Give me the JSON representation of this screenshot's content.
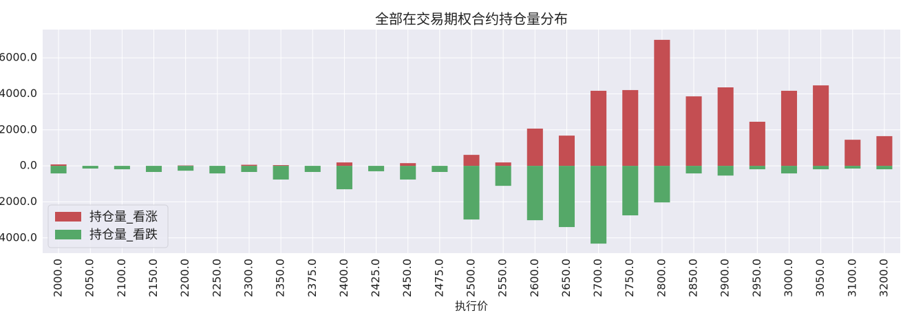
{
  "chart_data": {
    "type": "bar",
    "title": "全部在交易期权合约持仓量分布",
    "x_label": "执行价",
    "categories": [
      "2000.0",
      "2050.0",
      "2100.0",
      "2150.0",
      "2200.0",
      "2250.0",
      "2300.0",
      "2350.0",
      "2375.0",
      "2400.0",
      "2425.0",
      "2450.0",
      "2475.0",
      "2500.0",
      "2550.0",
      "2600.0",
      "2650.0",
      "2700.0",
      "2750.0",
      "2800.0",
      "2850.0",
      "2900.0",
      "2950.0",
      "3000.0",
      "3050.0",
      "3100.0",
      "3200.0"
    ],
    "series": [
      {
        "name": "持仓量_看涨",
        "color": "#c44e52",
        "values": [
          80,
          0,
          0,
          0,
          20,
          0,
          60,
          40,
          0,
          190,
          0,
          150,
          0,
          610,
          190,
          2070,
          1680,
          4170,
          4210,
          7000,
          3860,
          4360,
          2450,
          4170,
          4470,
          1450,
          1650
        ]
      },
      {
        "name": "持仓量_看跌",
        "color": "#55a868",
        "values": [
          -420,
          -150,
          -190,
          -340,
          -270,
          -420,
          -340,
          -760,
          -340,
          -1300,
          -300,
          -760,
          -340,
          -2980,
          -1110,
          -3020,
          -3400,
          -4320,
          -2750,
          -2030,
          -420,
          -540,
          -190,
          -420,
          -190,
          -150,
          -190
        ]
      }
    ],
    "ylim": [
      -4850,
      7570
    ],
    "yticks": [
      {
        "value": -4000,
        "label": "-4000.0"
      },
      {
        "value": -2000,
        "label": "-2000.0"
      },
      {
        "value": 0,
        "label": "0.0"
      },
      {
        "value": 2000,
        "label": "2000.0"
      },
      {
        "value": 4000,
        "label": "4000.0"
      },
      {
        "value": 6000,
        "label": "6000.0"
      }
    ],
    "grid": true,
    "legend": "lower left"
  }
}
